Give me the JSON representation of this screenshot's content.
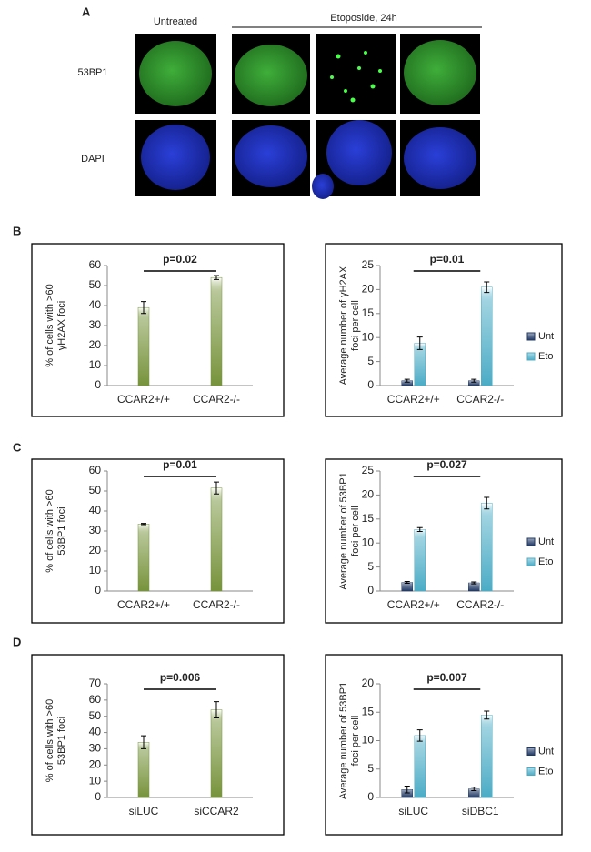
{
  "panel_a": {
    "label": "A",
    "untreated": "Untreated",
    "etoposide": "Etoposide, 24h",
    "row_labels": [
      "53BP1",
      "DAPI"
    ]
  },
  "panel_labels": [
    "B",
    "C",
    "D"
  ],
  "chart_data": [
    {
      "type": "bar",
      "annotation": "p=0.02",
      "y_label": [
        "% of cells with >60",
        "γH2AX foci"
      ],
      "categories": [
        "CCAR2+/+",
        "CCAR2-/-"
      ],
      "values": [
        39,
        54
      ],
      "errors": [
        3,
        1
      ],
      "color": "#77933c",
      "ylim": [
        0,
        60
      ],
      "yticks": [
        0,
        10,
        20,
        30,
        40,
        50,
        60
      ]
    },
    {
      "type": "bar",
      "annotation": "p=0.01",
      "y_label": [
        "Average number of γH2AX",
        "foci per cell"
      ],
      "categories": [
        "CCAR2+/+",
        "CCAR2-/-"
      ],
      "series": [
        {
          "name": "Unt",
          "color": "#1f3864",
          "values": [
            1,
            1
          ],
          "errors": [
            0.3,
            0.3
          ]
        },
        {
          "name": "Eto",
          "color": "#4bacc6",
          "values": [
            8.8,
            20.5
          ],
          "errors": [
            1.3,
            1.1
          ]
        }
      ],
      "ylim": [
        0,
        25
      ],
      "yticks": [
        0,
        5,
        10,
        15,
        20,
        25
      ]
    },
    {
      "type": "bar",
      "annotation": "p=0.01",
      "y_label": [
        "% of cells with >60",
        "53BP1 foci"
      ],
      "categories": [
        "CCAR2+/+",
        "CCAR2-/-"
      ],
      "values": [
        33.5,
        51.5
      ],
      "errors": [
        0.3,
        3
      ],
      "color": "#77933c",
      "ylim": [
        0,
        60
      ],
      "yticks": [
        0,
        10,
        20,
        30,
        40,
        50,
        60
      ]
    },
    {
      "type": "bar",
      "annotation": "p=0.027",
      "y_label": [
        "Average number of 53BP1",
        "foci per cell"
      ],
      "categories": [
        "CCAR2+/+",
        "CCAR2-/-"
      ],
      "series": [
        {
          "name": "Unt",
          "color": "#1f3864",
          "values": [
            1.8,
            1.7
          ],
          "errors": [
            0.2,
            0.2
          ]
        },
        {
          "name": "Eto",
          "color": "#4bacc6",
          "values": [
            12.8,
            18.3
          ],
          "errors": [
            0.4,
            1.2
          ]
        }
      ],
      "ylim": [
        0,
        25
      ],
      "yticks": [
        0,
        5,
        10,
        15,
        20,
        25
      ]
    },
    {
      "type": "bar",
      "annotation": "p=0.006",
      "y_label": [
        "% of cells with >60",
        "53BP1 foci"
      ],
      "categories": [
        "siLUC",
        "siCCAR2"
      ],
      "values": [
        34,
        54
      ],
      "errors": [
        4,
        5
      ],
      "color": "#77933c",
      "ylim": [
        0,
        70
      ],
      "yticks": [
        0,
        10,
        20,
        30,
        40,
        50,
        60,
        70
      ]
    },
    {
      "type": "bar",
      "annotation": "p=0.007",
      "y_label": [
        "Average number of 53BP1",
        "foci per cell"
      ],
      "categories": [
        "siLUC",
        "siDBC1"
      ],
      "series": [
        {
          "name": "Unt",
          "color": "#1f3864",
          "values": [
            1.4,
            1.5
          ],
          "errors": [
            0.6,
            0.3
          ]
        },
        {
          "name": "Eto",
          "color": "#4bacc6",
          "values": [
            10.9,
            14.5
          ],
          "errors": [
            1,
            0.7
          ]
        }
      ],
      "ylim": [
        0,
        20
      ],
      "yticks": [
        0,
        5,
        10,
        15,
        20
      ]
    }
  ]
}
